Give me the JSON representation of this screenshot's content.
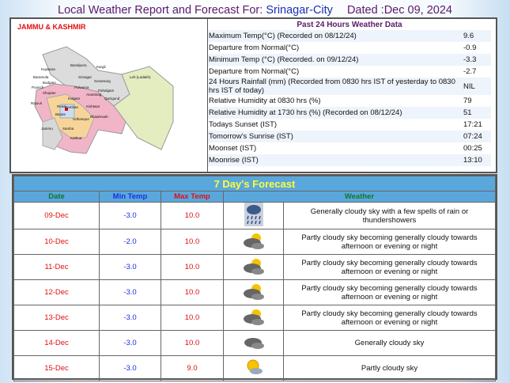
{
  "header": {
    "title": "Local Weather Report and Forecast For:",
    "city": "Srinagar-City",
    "dated": "Dated :Dec 09, 2024"
  },
  "map": {
    "state": "JAMMU & KASHMIR",
    "places": [
      "Kupwara",
      "Bandipora",
      "Kargil",
      "Baramula",
      "Budgam",
      "Srinagar",
      "Sonamarg",
      "Poonch",
      "Pulwama",
      "Pahalgam",
      "Shupian",
      "Kulgam",
      "Anantnag",
      "Qazigund",
      "Rajouri",
      "Ramban",
      "Kishtwar",
      "Reasi",
      "Batote",
      "Udhampur",
      "Bhaderwah",
      "Jammu",
      "Samba",
      "Kathua",
      "Leh (Ladakh)"
    ]
  },
  "past24": {
    "title": "Past 24 Hours Weather Data",
    "rows": [
      {
        "label": "Maximum Temp(°C) (Recorded on 08/12/24)",
        "value": "9.6"
      },
      {
        "label": "Departure from Normal(°C)",
        "value": "-0.9"
      },
      {
        "label": "Minimum Temp (°C) (Recorded. on 09/12/24)",
        "value": "-3.3"
      },
      {
        "label": "Departure from Normal(°C)",
        "value": "-2.7"
      },
      {
        "label": "24 Hours Rainfall (mm) (Recorded from 0830 hrs IST of yesterday to 0830 hrs IST of today)",
        "value": "NIL"
      },
      {
        "label": "Relative Humidity at 0830 hrs (%)",
        "value": "79"
      },
      {
        "label": "Relative Humidity at 1730 hrs (%) (Recorded on 08/12/24)",
        "value": "51"
      },
      {
        "label": "Todays Sunset (IST)",
        "value": "17:21"
      },
      {
        "label": "Tomorrow's Sunrise (IST)",
        "value": "07:24"
      },
      {
        "label": "Moonset (IST)",
        "value": "00:25"
      },
      {
        "label": "Moonrise (IST)",
        "value": "13:10"
      }
    ]
  },
  "forecast": {
    "title": "7 Day's Forecast",
    "columns": [
      "Date",
      "Min Temp",
      "Max Temp",
      "Weather"
    ],
    "rows": [
      {
        "date": "09-Dec",
        "min": "-3.0",
        "max": "10.0",
        "icon": "rain-thunder-icon",
        "weather": "Generally cloudy sky with a few spells of rain or thundershowers"
      },
      {
        "date": "10-Dec",
        "min": "-2.0",
        "max": "10.0",
        "icon": "partly-cloudy-icon",
        "weather": "Partly cloudy sky becoming generally cloudy towards afternoon or evening or night"
      },
      {
        "date": "11-Dec",
        "min": "-3.0",
        "max": "10.0",
        "icon": "partly-cloudy-icon",
        "weather": "Partly cloudy sky becoming generally cloudy towards afternoon or evening or night"
      },
      {
        "date": "12-Dec",
        "min": "-3.0",
        "max": "10.0",
        "icon": "partly-cloudy-icon",
        "weather": "Partly cloudy sky becoming generally cloudy towards afternoon or evening or night"
      },
      {
        "date": "13-Dec",
        "min": "-3.0",
        "max": "10.0",
        "icon": "partly-cloudy-icon",
        "weather": "Partly cloudy sky becoming generally cloudy towards afternoon or evening or night"
      },
      {
        "date": "14-Dec",
        "min": "-3.0",
        "max": "10.0",
        "icon": "cloudy-icon",
        "weather": "Generally cloudy sky"
      },
      {
        "date": "15-Dec",
        "min": "-3.0",
        "max": "9.0",
        "icon": "sun-cloud-icon",
        "weather": "Partly cloudy sky"
      }
    ]
  }
}
